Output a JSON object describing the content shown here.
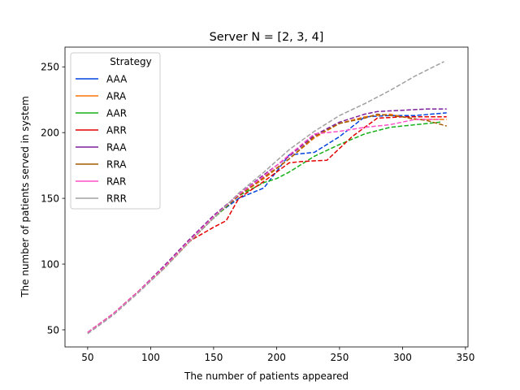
{
  "chart_data": {
    "type": "line",
    "title": "Server N = [2, 3, 4]",
    "xlabel": "The number of patients appeared",
    "ylabel": "The number of patients served in system",
    "xlim": [
      32,
      352
    ],
    "ylim": [
      37,
      265
    ],
    "xticks": [
      50,
      100,
      150,
      200,
      250,
      300,
      350
    ],
    "yticks": [
      50,
      100,
      150,
      200,
      250
    ],
    "grid": false,
    "legend": {
      "title": "Strategy",
      "position": "upper-left"
    },
    "line_style": "dashed",
    "series": [
      {
        "name": "AAA",
        "color": "#0343df",
        "x": [
          50,
          70,
          90,
          110,
          130,
          150,
          170,
          190,
          210,
          230,
          250,
          270,
          290,
          310,
          335
        ],
        "y": [
          48,
          62,
          79,
          97,
          117,
          136,
          150,
          158,
          183,
          185,
          197,
          212,
          213,
          213,
          215
        ]
      },
      {
        "name": "ARA",
        "color": "#f97306",
        "x": [
          50,
          70,
          90,
          110,
          130,
          150,
          170,
          190,
          210,
          230,
          250,
          270,
          290,
          310,
          335
        ],
        "y": [
          48,
          62,
          79,
          96,
          116,
          135,
          152,
          165,
          180,
          196,
          207,
          212,
          214,
          210,
          210
        ]
      },
      {
        "name": "AAR",
        "color": "#15b01a",
        "x": [
          50,
          70,
          90,
          110,
          130,
          150,
          170,
          190,
          200,
          210,
          230,
          250,
          270,
          290,
          310,
          330
        ],
        "y": [
          48,
          62,
          79,
          97,
          117,
          135,
          152,
          162,
          165,
          170,
          182,
          191,
          199,
          204,
          206,
          208
        ]
      },
      {
        "name": "ARR",
        "color": "#e50000",
        "x": [
          50,
          70,
          90,
          110,
          130,
          150,
          160,
          170,
          190,
          210,
          220,
          240,
          260,
          280,
          300,
          320,
          335
        ],
        "y": [
          48,
          62,
          79,
          97,
          117,
          128,
          133,
          150,
          163,
          177,
          178,
          179,
          197,
          211,
          212,
          212,
          212
        ]
      },
      {
        "name": "RAA",
        "color": "#7e1e9c",
        "x": [
          50,
          70,
          90,
          110,
          130,
          150,
          170,
          190,
          210,
          230,
          250,
          270,
          280,
          300,
          320,
          335
        ],
        "y": [
          48,
          62,
          79,
          98,
          118,
          137,
          153,
          168,
          182,
          198,
          208,
          214,
          216,
          217,
          218,
          218
        ]
      },
      {
        "name": "RRA",
        "color": "#a55a00",
        "x": [
          50,
          70,
          90,
          110,
          130,
          150,
          170,
          190,
          210,
          230,
          250,
          270,
          280,
          300,
          320,
          335
        ],
        "y": [
          48,
          62,
          79,
          97,
          117,
          136,
          152,
          166,
          180,
          197,
          207,
          211,
          214,
          212,
          209,
          205
        ]
      },
      {
        "name": "RAR",
        "color": "#ff50c8",
        "x": [
          50,
          70,
          90,
          110,
          130,
          150,
          170,
          190,
          210,
          230,
          250,
          270,
          290,
          310,
          330
        ],
        "y": [
          48,
          62,
          79,
          97,
          117,
          136,
          153,
          167,
          183,
          199,
          201,
          204,
          206,
          210,
          210
        ]
      },
      {
        "name": "RRR",
        "color": "#a0a0a0",
        "x": [
          50,
          70,
          90,
          110,
          130,
          150,
          170,
          190,
          210,
          230,
          250,
          270,
          290,
          310,
          333
        ],
        "y": [
          47,
          61,
          78,
          96,
          116,
          135,
          154,
          170,
          187,
          201,
          213,
          222,
          232,
          243,
          254
        ]
      }
    ]
  }
}
